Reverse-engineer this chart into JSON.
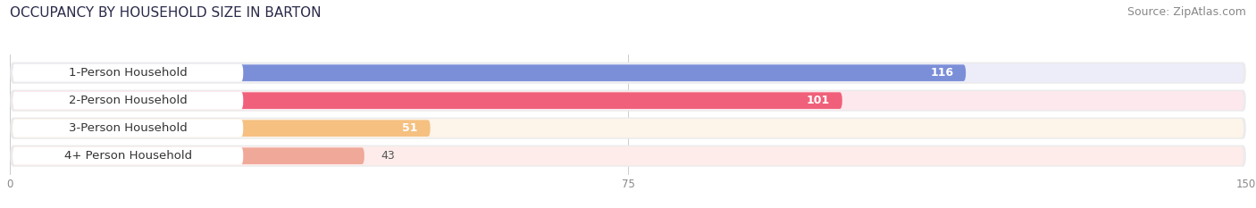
{
  "title": "OCCUPANCY BY HOUSEHOLD SIZE IN BARTON",
  "source": "Source: ZipAtlas.com",
  "categories": [
    "1-Person Household",
    "2-Person Household",
    "3-Person Household",
    "4+ Person Household"
  ],
  "values": [
    116,
    101,
    51,
    43
  ],
  "bar_colors": [
    "#7b8ed8",
    "#f0607a",
    "#f5c080",
    "#f0a898"
  ],
  "bar_bg_colors": [
    "#ecedf8",
    "#fde8ed",
    "#fdf4ea",
    "#fdecea"
  ],
  "xlim": [
    0,
    150
  ],
  "xticks": [
    0,
    75,
    150
  ],
  "title_fontsize": 11,
  "source_fontsize": 9,
  "label_fontsize": 9.5,
  "value_fontsize": 9,
  "background_color": "#ffffff",
  "label_pill_color": "#ffffff",
  "label_text_color": "#333333",
  "value_inside_color": "#ffffff",
  "value_outside_color": "#555555",
  "grid_color": "#cccccc",
  "outer_bg_color": "#ebebeb"
}
